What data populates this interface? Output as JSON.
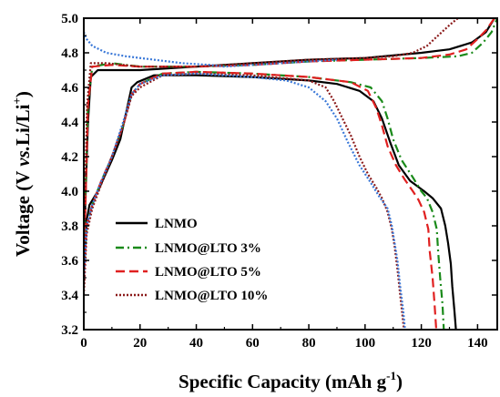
{
  "chart_data": {
    "type": "line",
    "xlabel": "Specific Capacity (mAh g-1)",
    "xlabel_parts": {
      "main": "Specific Capacity (mAh g",
      "sup": "-1",
      "close": ")"
    },
    "ylabel": "Voltage (V vs.Li/Li+)",
    "ylabel_parts": {
      "pre": "Voltage (V ",
      "italic": "vs.",
      "mid": "Li/Li",
      "sup": "+",
      "close": ")"
    },
    "xlim": [
      0,
      147
    ],
    "ylim": [
      3.2,
      5.0
    ],
    "xticks": [
      0,
      20,
      40,
      60,
      80,
      100,
      120,
      140
    ],
    "yticks": [
      3.2,
      3.4,
      3.6,
      3.8,
      4.0,
      4.2,
      4.4,
      4.6,
      4.8,
      5.0
    ],
    "xtick_labels": [
      "0",
      "20",
      "40",
      "60",
      "80",
      "100",
      "120",
      "140"
    ],
    "ytick_labels": [
      "3.2",
      "3.4",
      "3.6",
      "3.8",
      "4.0",
      "4.2",
      "4.4",
      "4.6",
      "4.8",
      "5.0"
    ],
    "grid": false,
    "legend_position": "bottom-left",
    "series": [
      {
        "name": "LNMO",
        "color": "#000000",
        "dash": "solid",
        "charge": [
          [
            0,
            3.55
          ],
          [
            0.5,
            3.9
          ],
          [
            1.5,
            4.4
          ],
          [
            2.5,
            4.66
          ],
          [
            5,
            4.7
          ],
          [
            20,
            4.7
          ],
          [
            40,
            4.72
          ],
          [
            60,
            4.74
          ],
          [
            80,
            4.76
          ],
          [
            100,
            4.77
          ],
          [
            120,
            4.8
          ],
          [
            130,
            4.82
          ],
          [
            138,
            4.86
          ],
          [
            143,
            4.92
          ],
          [
            146,
            5.0
          ]
        ],
        "discharge": [
          [
            0,
            3.55
          ],
          [
            1,
            3.83
          ],
          [
            2,
            3.92
          ],
          [
            5,
            4.0
          ],
          [
            10,
            4.18
          ],
          [
            13,
            4.3
          ],
          [
            15,
            4.45
          ],
          [
            17,
            4.6
          ],
          [
            19,
            4.63
          ],
          [
            25,
            4.67
          ],
          [
            40,
            4.67
          ],
          [
            60,
            4.66
          ],
          [
            80,
            4.64
          ],
          [
            90,
            4.62
          ],
          [
            98,
            4.58
          ],
          [
            103,
            4.52
          ],
          [
            106,
            4.42
          ],
          [
            109,
            4.28
          ],
          [
            112,
            4.15
          ],
          [
            116,
            4.06
          ],
          [
            121,
            4.0
          ],
          [
            124,
            3.96
          ],
          [
            127,
            3.9
          ],
          [
            128.5,
            3.8
          ],
          [
            129.5,
            3.7
          ],
          [
            130.5,
            3.58
          ],
          [
            131,
            3.45
          ],
          [
            131.8,
            3.3
          ],
          [
            132.3,
            3.2
          ]
        ]
      },
      {
        "name": "LNMO@LTO 3%",
        "color": "#1a8a1a",
        "dash": "dashdot",
        "charge": [
          [
            0,
            3.55
          ],
          [
            0.5,
            3.9
          ],
          [
            1.5,
            4.5
          ],
          [
            3,
            4.72
          ],
          [
            10,
            4.74
          ],
          [
            20,
            4.72
          ],
          [
            40,
            4.72
          ],
          [
            60,
            4.73
          ],
          [
            80,
            4.75
          ],
          [
            100,
            4.76
          ],
          [
            120,
            4.77
          ],
          [
            133,
            4.78
          ],
          [
            138,
            4.8
          ],
          [
            142,
            4.86
          ],
          [
            145,
            4.92
          ],
          [
            147,
            5.0
          ]
        ],
        "discharge": [
          [
            0,
            3.5
          ],
          [
            1,
            3.8
          ],
          [
            3,
            3.92
          ],
          [
            6,
            4.05
          ],
          [
            10,
            4.2
          ],
          [
            14,
            4.38
          ],
          [
            17,
            4.56
          ],
          [
            20,
            4.62
          ],
          [
            28,
            4.68
          ],
          [
            40,
            4.69
          ],
          [
            60,
            4.68
          ],
          [
            80,
            4.66
          ],
          [
            95,
            4.63
          ],
          [
            102,
            4.6
          ],
          [
            106,
            4.52
          ],
          [
            108,
            4.42
          ],
          [
            110,
            4.3
          ],
          [
            113,
            4.18
          ],
          [
            117,
            4.08
          ],
          [
            120,
            4.0
          ],
          [
            122,
            3.96
          ],
          [
            124,
            3.88
          ],
          [
            125.5,
            3.78
          ],
          [
            126,
            3.65
          ],
          [
            126.7,
            3.5
          ],
          [
            127.5,
            3.35
          ],
          [
            128,
            3.2
          ]
        ]
      },
      {
        "name": "LNMO@LTO 5%",
        "color": "#e02020",
        "dash": "dashed",
        "charge": [
          [
            0,
            3.45
          ],
          [
            0.5,
            3.85
          ],
          [
            1.5,
            4.5
          ],
          [
            3,
            4.72
          ],
          [
            10,
            4.73
          ],
          [
            20,
            4.72
          ],
          [
            40,
            4.72
          ],
          [
            60,
            4.73
          ],
          [
            80,
            4.75
          ],
          [
            100,
            4.76
          ],
          [
            120,
            4.77
          ],
          [
            130,
            4.79
          ],
          [
            136,
            4.82
          ],
          [
            140,
            4.88
          ],
          [
            143,
            4.93
          ],
          [
            146,
            5.0
          ]
        ],
        "discharge": [
          [
            0,
            3.48
          ],
          [
            1,
            3.8
          ],
          [
            3,
            3.92
          ],
          [
            6,
            4.05
          ],
          [
            10,
            4.2
          ],
          [
            14,
            4.38
          ],
          [
            17,
            4.56
          ],
          [
            20,
            4.62
          ],
          [
            28,
            4.68
          ],
          [
            40,
            4.69
          ],
          [
            60,
            4.68
          ],
          [
            80,
            4.66
          ],
          [
            95,
            4.63
          ],
          [
            101,
            4.58
          ],
          [
            104,
            4.48
          ],
          [
            106,
            4.38
          ],
          [
            108,
            4.26
          ],
          [
            111,
            4.15
          ],
          [
            114,
            4.07
          ],
          [
            117,
            4.0
          ],
          [
            119,
            3.95
          ],
          [
            121,
            3.88
          ],
          [
            122.5,
            3.78
          ],
          [
            123,
            3.65
          ],
          [
            124,
            3.5
          ],
          [
            124.7,
            3.35
          ],
          [
            125.3,
            3.2
          ]
        ]
      },
      {
        "name": "LNMO@LTO 10%",
        "color": "#8b1a1a",
        "dash": "dotted",
        "charge": [
          [
            0,
            3.6
          ],
          [
            0.5,
            4.0
          ],
          [
            1.2,
            4.5
          ],
          [
            2.5,
            4.74
          ],
          [
            8,
            4.74
          ],
          [
            20,
            4.72
          ],
          [
            40,
            4.72
          ],
          [
            60,
            4.74
          ],
          [
            80,
            4.76
          ],
          [
            100,
            4.77
          ],
          [
            110,
            4.78
          ],
          [
            117,
            4.8
          ],
          [
            122,
            4.84
          ],
          [
            126,
            4.9
          ],
          [
            130,
            4.96
          ],
          [
            133,
            5.0
          ]
        ],
        "discharge": [
          [
            0,
            3.4
          ],
          [
            1,
            3.75
          ],
          [
            3,
            3.9
          ],
          [
            6,
            4.03
          ],
          [
            10,
            4.2
          ],
          [
            14,
            4.38
          ],
          [
            17,
            4.55
          ],
          [
            20,
            4.6
          ],
          [
            28,
            4.67
          ],
          [
            40,
            4.68
          ],
          [
            60,
            4.67
          ],
          [
            80,
            4.64
          ],
          [
            86,
            4.6
          ],
          [
            89,
            4.52
          ],
          [
            92,
            4.42
          ],
          [
            95,
            4.32
          ],
          [
            98,
            4.2
          ],
          [
            101,
            4.1
          ],
          [
            104,
            4.02
          ],
          [
            106,
            3.96
          ],
          [
            108,
            3.88
          ],
          [
            109.5,
            3.78
          ],
          [
            110.5,
            3.68
          ],
          [
            111.5,
            3.55
          ],
          [
            112.5,
            3.4
          ],
          [
            113.3,
            3.28
          ],
          [
            113.8,
            3.2
          ]
        ]
      },
      {
        "name": "",
        "color": "#3a78d8",
        "dash": "dotted",
        "charge": [
          [
            0,
            4.92
          ],
          [
            1,
            4.88
          ],
          [
            3,
            4.84
          ],
          [
            8,
            4.8
          ],
          [
            15,
            4.78
          ],
          [
            25,
            4.76
          ],
          [
            35,
            4.74
          ],
          [
            45,
            4.73
          ],
          [
            50,
            4.72
          ],
          [
            60,
            4.73
          ],
          [
            80,
            4.75
          ],
          [
            90,
            4.76
          ]
        ],
        "discharge": [
          [
            0,
            3.5
          ],
          [
            1,
            3.8
          ],
          [
            3,
            3.92
          ],
          [
            6,
            4.05
          ],
          [
            10,
            4.2
          ],
          [
            14,
            4.4
          ],
          [
            17,
            4.56
          ],
          [
            20,
            4.62
          ],
          [
            28,
            4.67
          ],
          [
            40,
            4.68
          ],
          [
            60,
            4.66
          ],
          [
            72,
            4.64
          ],
          [
            80,
            4.6
          ],
          [
            86,
            4.52
          ],
          [
            90,
            4.42
          ],
          [
            94,
            4.28
          ],
          [
            98,
            4.15
          ],
          [
            102,
            4.05
          ],
          [
            105,
            3.97
          ],
          [
            108,
            3.9
          ],
          [
            109.5,
            3.8
          ],
          [
            110.5,
            3.7
          ],
          [
            111.5,
            3.6
          ],
          [
            112.5,
            3.45
          ],
          [
            113.5,
            3.32
          ],
          [
            114.2,
            3.2
          ]
        ]
      }
    ]
  }
}
